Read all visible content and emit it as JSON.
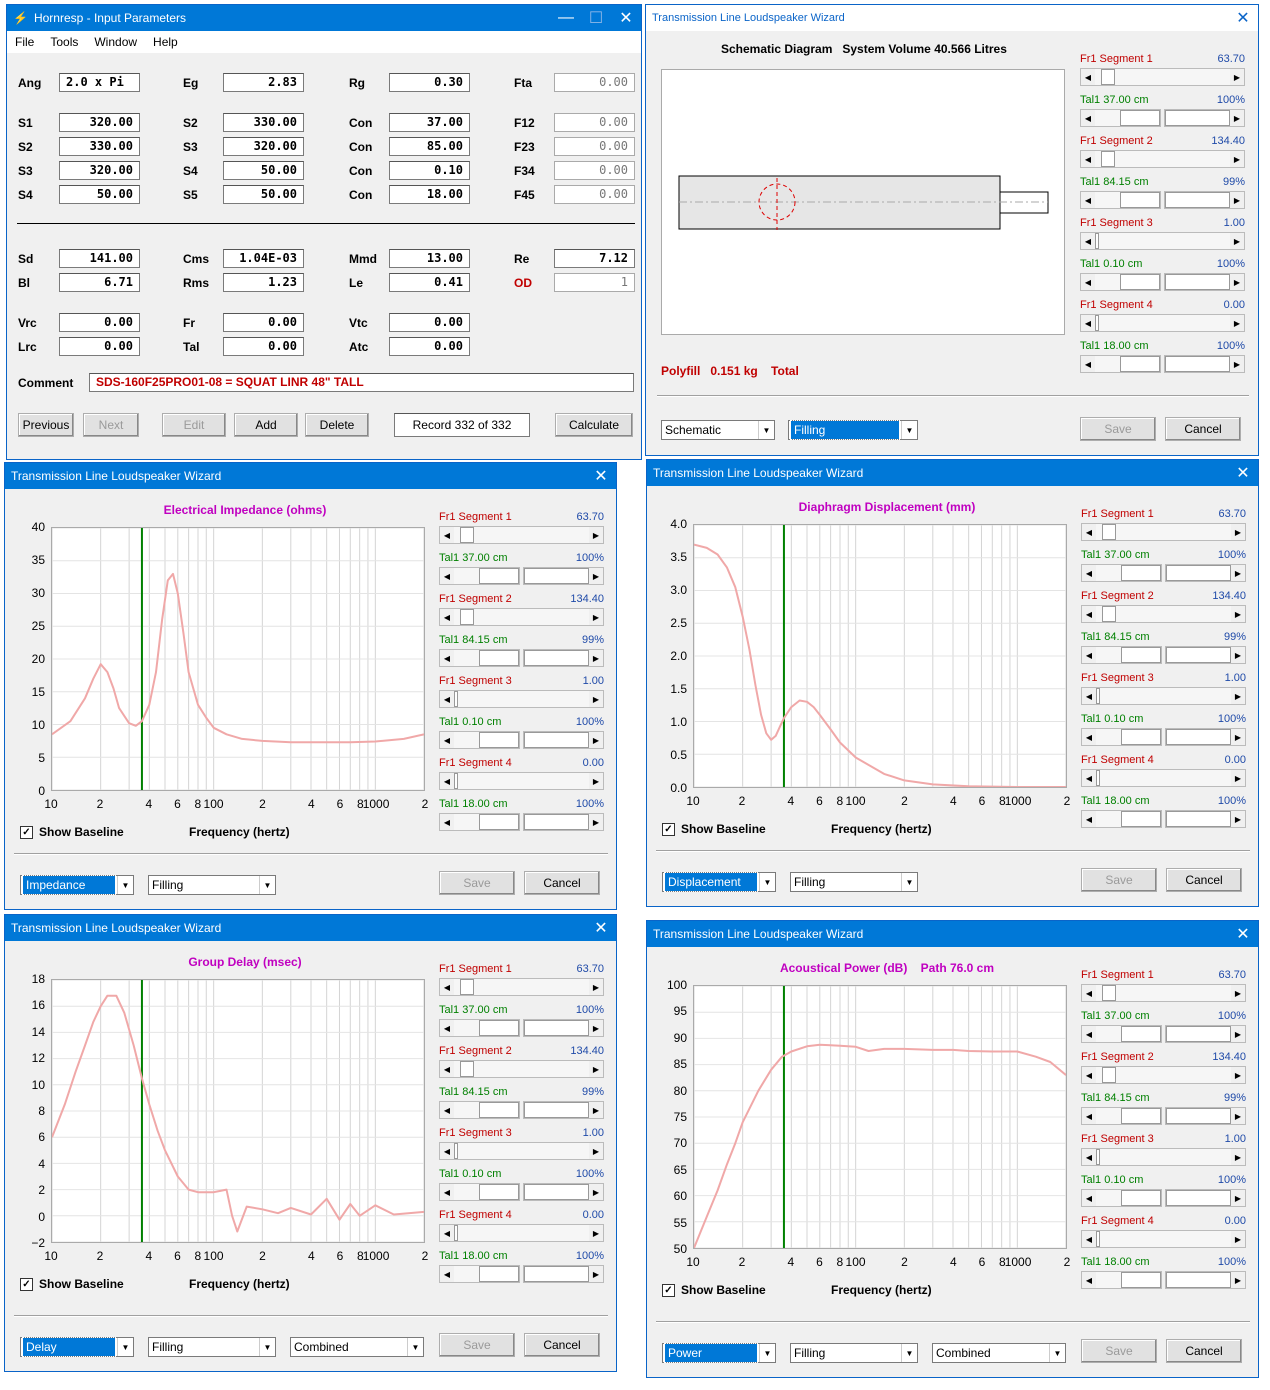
{
  "input_win": {
    "title": "Hornresp - Input Parameters",
    "menu": [
      "File",
      "Tools",
      "Window",
      "Help"
    ],
    "rows1": [
      [
        {
          "l": "Ang",
          "v": "2.0 x Pi"
        },
        {
          "l": "Eg",
          "v": "2.83"
        },
        {
          "l": "Rg",
          "v": "0.30"
        },
        {
          "l": "Fta",
          "v": "0.00"
        }
      ]
    ],
    "rows2": [
      [
        {
          "l": "S1",
          "v": "320.00"
        },
        {
          "l": "S2",
          "v": "330.00"
        },
        {
          "l": "Con",
          "v": "37.00"
        },
        {
          "l": "F12",
          "v": "0.00"
        }
      ],
      [
        {
          "l": "S2",
          "v": "330.00"
        },
        {
          "l": "S3",
          "v": "320.00"
        },
        {
          "l": "Con",
          "v": "85.00"
        },
        {
          "l": "F23",
          "v": "0.00"
        }
      ],
      [
        {
          "l": "S3",
          "v": "320.00"
        },
        {
          "l": "S4",
          "v": "50.00"
        },
        {
          "l": "Con",
          "v": "0.10"
        },
        {
          "l": "F34",
          "v": "0.00"
        }
      ],
      [
        {
          "l": "S4",
          "v": "50.00"
        },
        {
          "l": "S5",
          "v": "50.00"
        },
        {
          "l": "Con",
          "v": "18.00"
        },
        {
          "l": "F45",
          "v": "0.00"
        }
      ]
    ],
    "rows3": [
      [
        {
          "l": "Sd",
          "v": "141.00"
        },
        {
          "l": "Cms",
          "v": "1.04E-03"
        },
        {
          "l": "Mmd",
          "v": "13.00"
        },
        {
          "l": "Re",
          "v": "7.12"
        }
      ],
      [
        {
          "l": "Bl",
          "v": "6.71"
        },
        {
          "l": "Rms",
          "v": "1.23"
        },
        {
          "l": "Le",
          "v": "0.41"
        },
        {
          "l": "OD",
          "v": "1"
        }
      ]
    ],
    "rows4": [
      [
        {
          "l": "Vrc",
          "v": "0.00"
        },
        {
          "l": "Fr",
          "v": "0.00"
        },
        {
          "l": "Vtc",
          "v": "0.00"
        }
      ],
      [
        {
          "l": "Lrc",
          "v": "0.00"
        },
        {
          "l": "Tal",
          "v": "0.00"
        },
        {
          "l": "Atc",
          "v": "0.00"
        }
      ]
    ],
    "comment_label": "Comment",
    "comment": "SDS-160F25PRO01-08 = SQUAT LINR   48\" TALL",
    "buttons": {
      "previous": "Previous",
      "next": "Next",
      "edit": "Edit",
      "add": "Add",
      "delete": "Delete",
      "record": "Record 332 of 332",
      "calculate": "Calculate"
    }
  },
  "wizard_title": "Transmission Line Loudspeaker Wizard",
  "schematic": {
    "heading": "Schematic Diagram   System Volume 40.566 Litres",
    "polyfill": "Polyfill   0.151 kg    Total",
    "combo1": "Schematic",
    "combo2": "Filling"
  },
  "segments": [
    {
      "name": "Fr1  Segment 1",
      "value": "63.70",
      "tal": "Tal1  37.00 cm",
      "pct": "100%"
    },
    {
      "name": "Fr1  Segment 2",
      "value": "134.40",
      "tal": "Tal1  84.15 cm",
      "pct": "99%"
    },
    {
      "name": "Fr1  Segment 3",
      "value": "1.00",
      "tal": "Tal1  0.10 cm",
      "pct": "100%"
    },
    {
      "name": "Fr1  Segment 4",
      "value": "0.00",
      "tal": "Tal1  18.00 cm",
      "pct": "100%"
    }
  ],
  "common": {
    "save": "Save",
    "cancel": "Cancel",
    "show_baseline": "Show Baseline",
    "xlabel": "Frequency (hertz)",
    "check": "✓"
  },
  "x_ticks": [
    "10",
    "2",
    "4",
    "6",
    "8",
    "100",
    "2",
    "4",
    "6",
    "8",
    "1000",
    "2"
  ],
  "impedance": {
    "title": "Electrical Impedance (ohms)",
    "combo1": "Impedance",
    "combo2": "Filling",
    "yticks": [
      "40",
      "35",
      "30",
      "25",
      "20",
      "15",
      "10",
      "5",
      "0"
    ]
  },
  "displacement": {
    "title": "Diaphragm Displacement (mm)",
    "combo1": "Displacement",
    "combo2": "Filling",
    "yticks": [
      "4.0",
      "3.5",
      "3.0",
      "2.5",
      "2.0",
      "1.5",
      "1.0",
      "0.5",
      "0.0"
    ]
  },
  "delay": {
    "title": "Group Delay (msec)",
    "combo1": "Delay",
    "combo2": "Filling",
    "combo3": "Combined",
    "yticks": [
      "18",
      "16",
      "14",
      "12",
      "10",
      "8",
      "6",
      "4",
      "2",
      "0",
      "−2"
    ]
  },
  "power": {
    "title": "Acoustical Power (dB)    Path 76.0 cm",
    "combo1": "Power",
    "combo2": "Filling",
    "combo3": "Combined",
    "yticks": [
      "100",
      "95",
      "90",
      "85",
      "80",
      "75",
      "70",
      "65",
      "60",
      "55",
      "50"
    ]
  },
  "chart_data": [
    {
      "type": "line",
      "title": "Electrical Impedance (ohms)",
      "xlabel": "Frequency (hertz)",
      "xscale": "log",
      "xlim": [
        10,
        2000
      ],
      "ylim": [
        0,
        40
      ],
      "x": [
        10,
        13,
        16,
        18,
        20,
        22,
        24,
        26,
        30,
        33,
        36,
        40,
        44,
        48,
        52,
        56,
        60,
        65,
        70,
        80,
        90,
        100,
        120,
        150,
        200,
        300,
        500,
        700,
        1000,
        1500,
        2000
      ],
      "y": [
        8.5,
        10.5,
        14,
        17,
        19.2,
        18,
        15.5,
        12.5,
        10.2,
        9.8,
        10.5,
        13,
        18,
        26,
        32,
        33,
        30,
        24,
        18,
        13,
        11,
        9.5,
        8.5,
        7.8,
        7.5,
        7.3,
        7.3,
        7.3,
        7.4,
        7.8,
        8.5
      ]
    },
    {
      "type": "line",
      "title": "Diaphragm Displacement (mm)",
      "xlabel": "Frequency (hertz)",
      "xscale": "log",
      "xlim": [
        10,
        2000
      ],
      "ylim": [
        0,
        4
      ],
      "x": [
        10,
        12,
        14,
        16,
        18,
        20,
        22,
        24,
        26,
        28,
        30,
        32,
        34,
        36,
        40,
        45,
        50,
        55,
        60,
        70,
        80,
        100,
        150,
        200,
        300,
        500,
        1000,
        2000
      ],
      "y": [
        3.7,
        3.65,
        3.55,
        3.35,
        3.05,
        2.6,
        2.1,
        1.55,
        1.1,
        0.82,
        0.72,
        0.78,
        0.92,
        1.05,
        1.22,
        1.32,
        1.3,
        1.22,
        1.1,
        0.88,
        0.68,
        0.45,
        0.2,
        0.1,
        0.04,
        0.01,
        0.0,
        0.0
      ]
    },
    {
      "type": "line",
      "title": "Group Delay (msec)",
      "xlabel": "Frequency (hertz)",
      "xscale": "log",
      "xlim": [
        10,
        2000
      ],
      "ylim": [
        -2,
        18
      ],
      "x": [
        10,
        12,
        14,
        16,
        18,
        20,
        22,
        25,
        28,
        32,
        36,
        40,
        45,
        50,
        60,
        70,
        80,
        90,
        100,
        110,
        120,
        130,
        140,
        160,
        200,
        250,
        300,
        400,
        500,
        600,
        700,
        800,
        1000,
        1300,
        1600,
        2000
      ],
      "y": [
        6,
        8.5,
        11,
        13,
        14.8,
        16,
        16.8,
        16.8,
        15.5,
        13,
        10.5,
        8.5,
        6.5,
        5,
        3,
        2,
        1.8,
        1.8,
        1.8,
        1.9,
        2,
        0,
        -1.2,
        0.7,
        0.5,
        0.2,
        0.6,
        0.1,
        1.3,
        -0.3,
        0.9,
        0,
        0.8,
        0.1,
        0.2,
        0.3
      ]
    },
    {
      "type": "line",
      "title": "Acoustical Power (dB)    Path 76.0 cm",
      "xlabel": "Frequency (hertz)",
      "xscale": "log",
      "xlim": [
        10,
        2000
      ],
      "ylim": [
        50,
        100
      ],
      "x": [
        10,
        12,
        14,
        16,
        18,
        20,
        25,
        30,
        35,
        40,
        50,
        60,
        70,
        80,
        100,
        120,
        150,
        200,
        300,
        400,
        500,
        700,
        1000,
        1300,
        1600,
        2000
      ],
      "y": [
        50,
        56,
        61,
        66,
        70,
        74,
        80,
        84,
        86.5,
        87.5,
        88.5,
        88.8,
        88.7,
        88.6,
        88.4,
        87.6,
        88,
        88,
        87.8,
        87.8,
        87.6,
        87.5,
        87.5,
        86.5,
        85.5,
        83
      ]
    }
  ]
}
